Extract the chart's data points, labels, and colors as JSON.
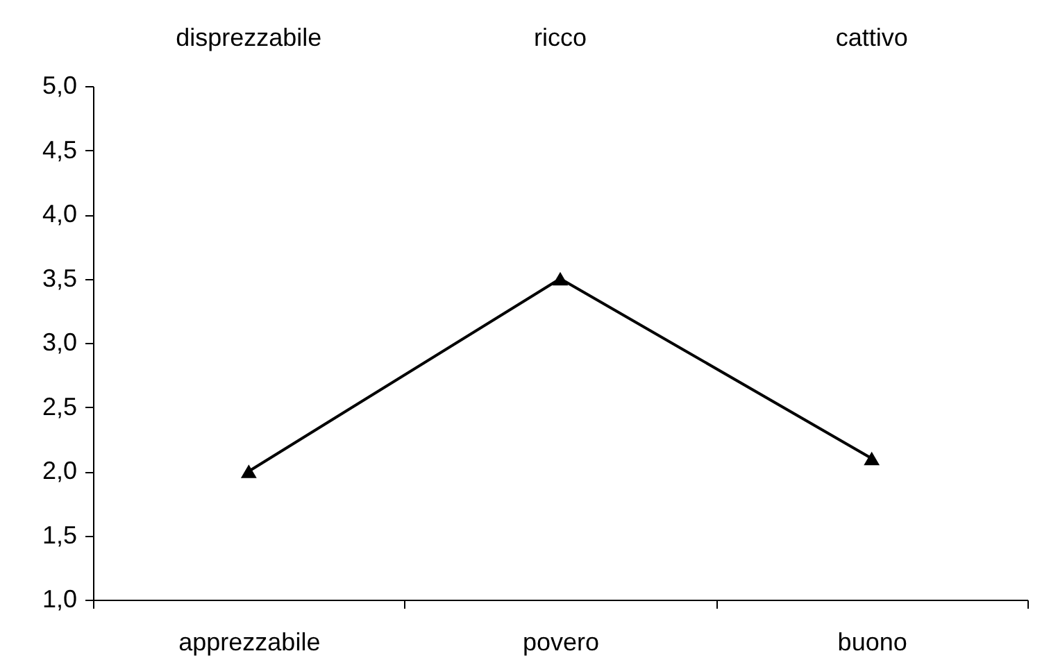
{
  "chart_data": {
    "type": "line",
    "categories": [
      "apprezzabile",
      "povero",
      "buono"
    ],
    "annotations": [
      "disprezzabile",
      "ricco",
      "cattivo"
    ],
    "series": [
      {
        "color": "#000000",
        "values": [
          2.0,
          3.5,
          2.1
        ]
      }
    ],
    "ylim": [
      1,
      5
    ],
    "yticks": [
      {
        "value": 1,
        "label": "1,0"
      },
      {
        "value": 1.5,
        "label": "1,5"
      },
      {
        "value": 2,
        "label": "2,0"
      },
      {
        "value": 2.5,
        "label": "2,5"
      },
      {
        "value": 3,
        "label": "3,0"
      },
      {
        "value": 3.5,
        "label": "3,5"
      },
      {
        "value": 4,
        "label": "4,0"
      },
      {
        "value": 4.5,
        "label": "4,5"
      },
      {
        "value": 5,
        "label": "5,0"
      }
    ],
    "grid": false,
    "marker": "triangle",
    "line_style": "solid"
  }
}
